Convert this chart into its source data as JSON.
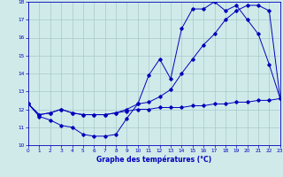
{
  "title": "Graphe des températures (°C)",
  "bg_color": "#d0eaea",
  "grid_color": "#a8c8c8",
  "line_color": "#0000bb",
  "xlim": [
    0,
    23
  ],
  "ylim": [
    10,
    18
  ],
  "yticks": [
    10,
    11,
    12,
    13,
    14,
    15,
    16,
    17,
    18
  ],
  "xticks": [
    0,
    1,
    2,
    3,
    4,
    5,
    6,
    7,
    8,
    9,
    10,
    11,
    12,
    13,
    14,
    15,
    16,
    17,
    18,
    19,
    20,
    21,
    22,
    23
  ],
  "curve1_x": [
    0,
    1,
    2,
    3,
    4,
    5,
    6,
    7,
    8,
    9,
    10,
    11,
    12,
    13,
    14,
    15,
    16,
    17,
    18,
    19,
    20,
    21,
    22,
    23
  ],
  "curve1_y": [
    12.3,
    11.6,
    11.4,
    11.1,
    11.0,
    10.6,
    10.5,
    10.5,
    10.6,
    11.5,
    12.3,
    13.9,
    14.8,
    13.7,
    16.5,
    17.6,
    17.6,
    18.0,
    17.5,
    17.8,
    17.0,
    16.2,
    14.5,
    12.6
  ],
  "curve2_x": [
    0,
    1,
    2,
    3,
    4,
    5,
    6,
    7,
    8,
    9,
    10,
    11,
    12,
    13,
    14,
    15,
    16,
    17,
    18,
    19,
    20,
    21,
    22,
    23
  ],
  "curve2_y": [
    12.3,
    11.7,
    11.8,
    12.0,
    11.8,
    11.7,
    11.7,
    11.7,
    11.8,
    12.0,
    12.3,
    12.4,
    12.7,
    13.1,
    14.0,
    14.8,
    15.6,
    16.2,
    17.0,
    17.5,
    17.8,
    17.8,
    17.5,
    12.6
  ],
  "curve3_x": [
    0,
    1,
    2,
    3,
    4,
    5,
    6,
    7,
    8,
    9,
    10,
    11,
    12,
    13,
    14,
    15,
    16,
    17,
    18,
    19,
    20,
    21,
    22,
    23
  ],
  "curve3_y": [
    12.3,
    11.7,
    11.8,
    12.0,
    11.8,
    11.7,
    11.7,
    11.7,
    11.8,
    11.9,
    12.0,
    12.0,
    12.1,
    12.1,
    12.1,
    12.2,
    12.2,
    12.3,
    12.3,
    12.4,
    12.4,
    12.5,
    12.5,
    12.6
  ]
}
